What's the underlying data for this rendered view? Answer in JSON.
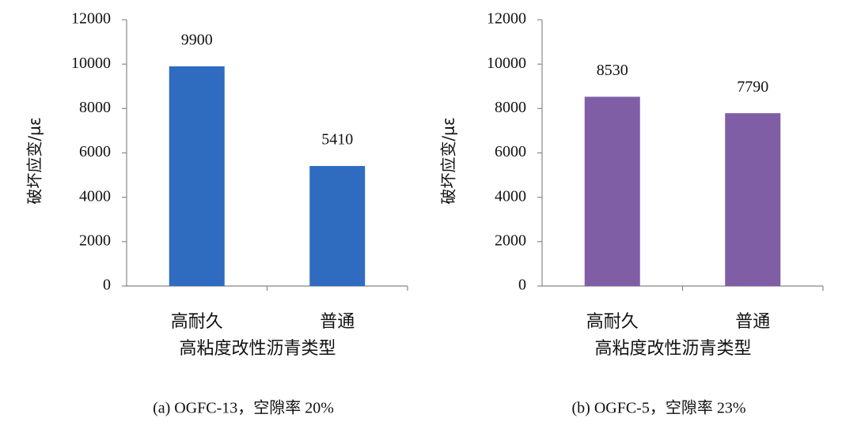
{
  "chart_data": [
    {
      "type": "bar",
      "caption": "(a) OGFC-13，空隙率 20%",
      "y_label": "破坏应变/με",
      "x_label": "高粘度改性沥青类型",
      "categories": [
        "高耐久",
        "普通"
      ],
      "values": [
        9900,
        5410
      ],
      "color": "#2f6cc0",
      "ylim": [
        0,
        12000
      ],
      "yticks": [
        0,
        2000,
        4000,
        6000,
        8000,
        10000,
        12000
      ],
      "grid": false
    },
    {
      "type": "bar",
      "caption": "(b) OGFC-5，空隙率 23%",
      "y_label": "破坏应变/με",
      "x_label": "高粘度改性沥青类型",
      "categories": [
        "高耐久",
        "普通"
      ],
      "values": [
        8530,
        7790
      ],
      "color": "#7f5ea6",
      "ylim": [
        0,
        12000
      ],
      "yticks": [
        0,
        2000,
        4000,
        6000,
        8000,
        10000,
        12000
      ],
      "grid": false
    }
  ]
}
